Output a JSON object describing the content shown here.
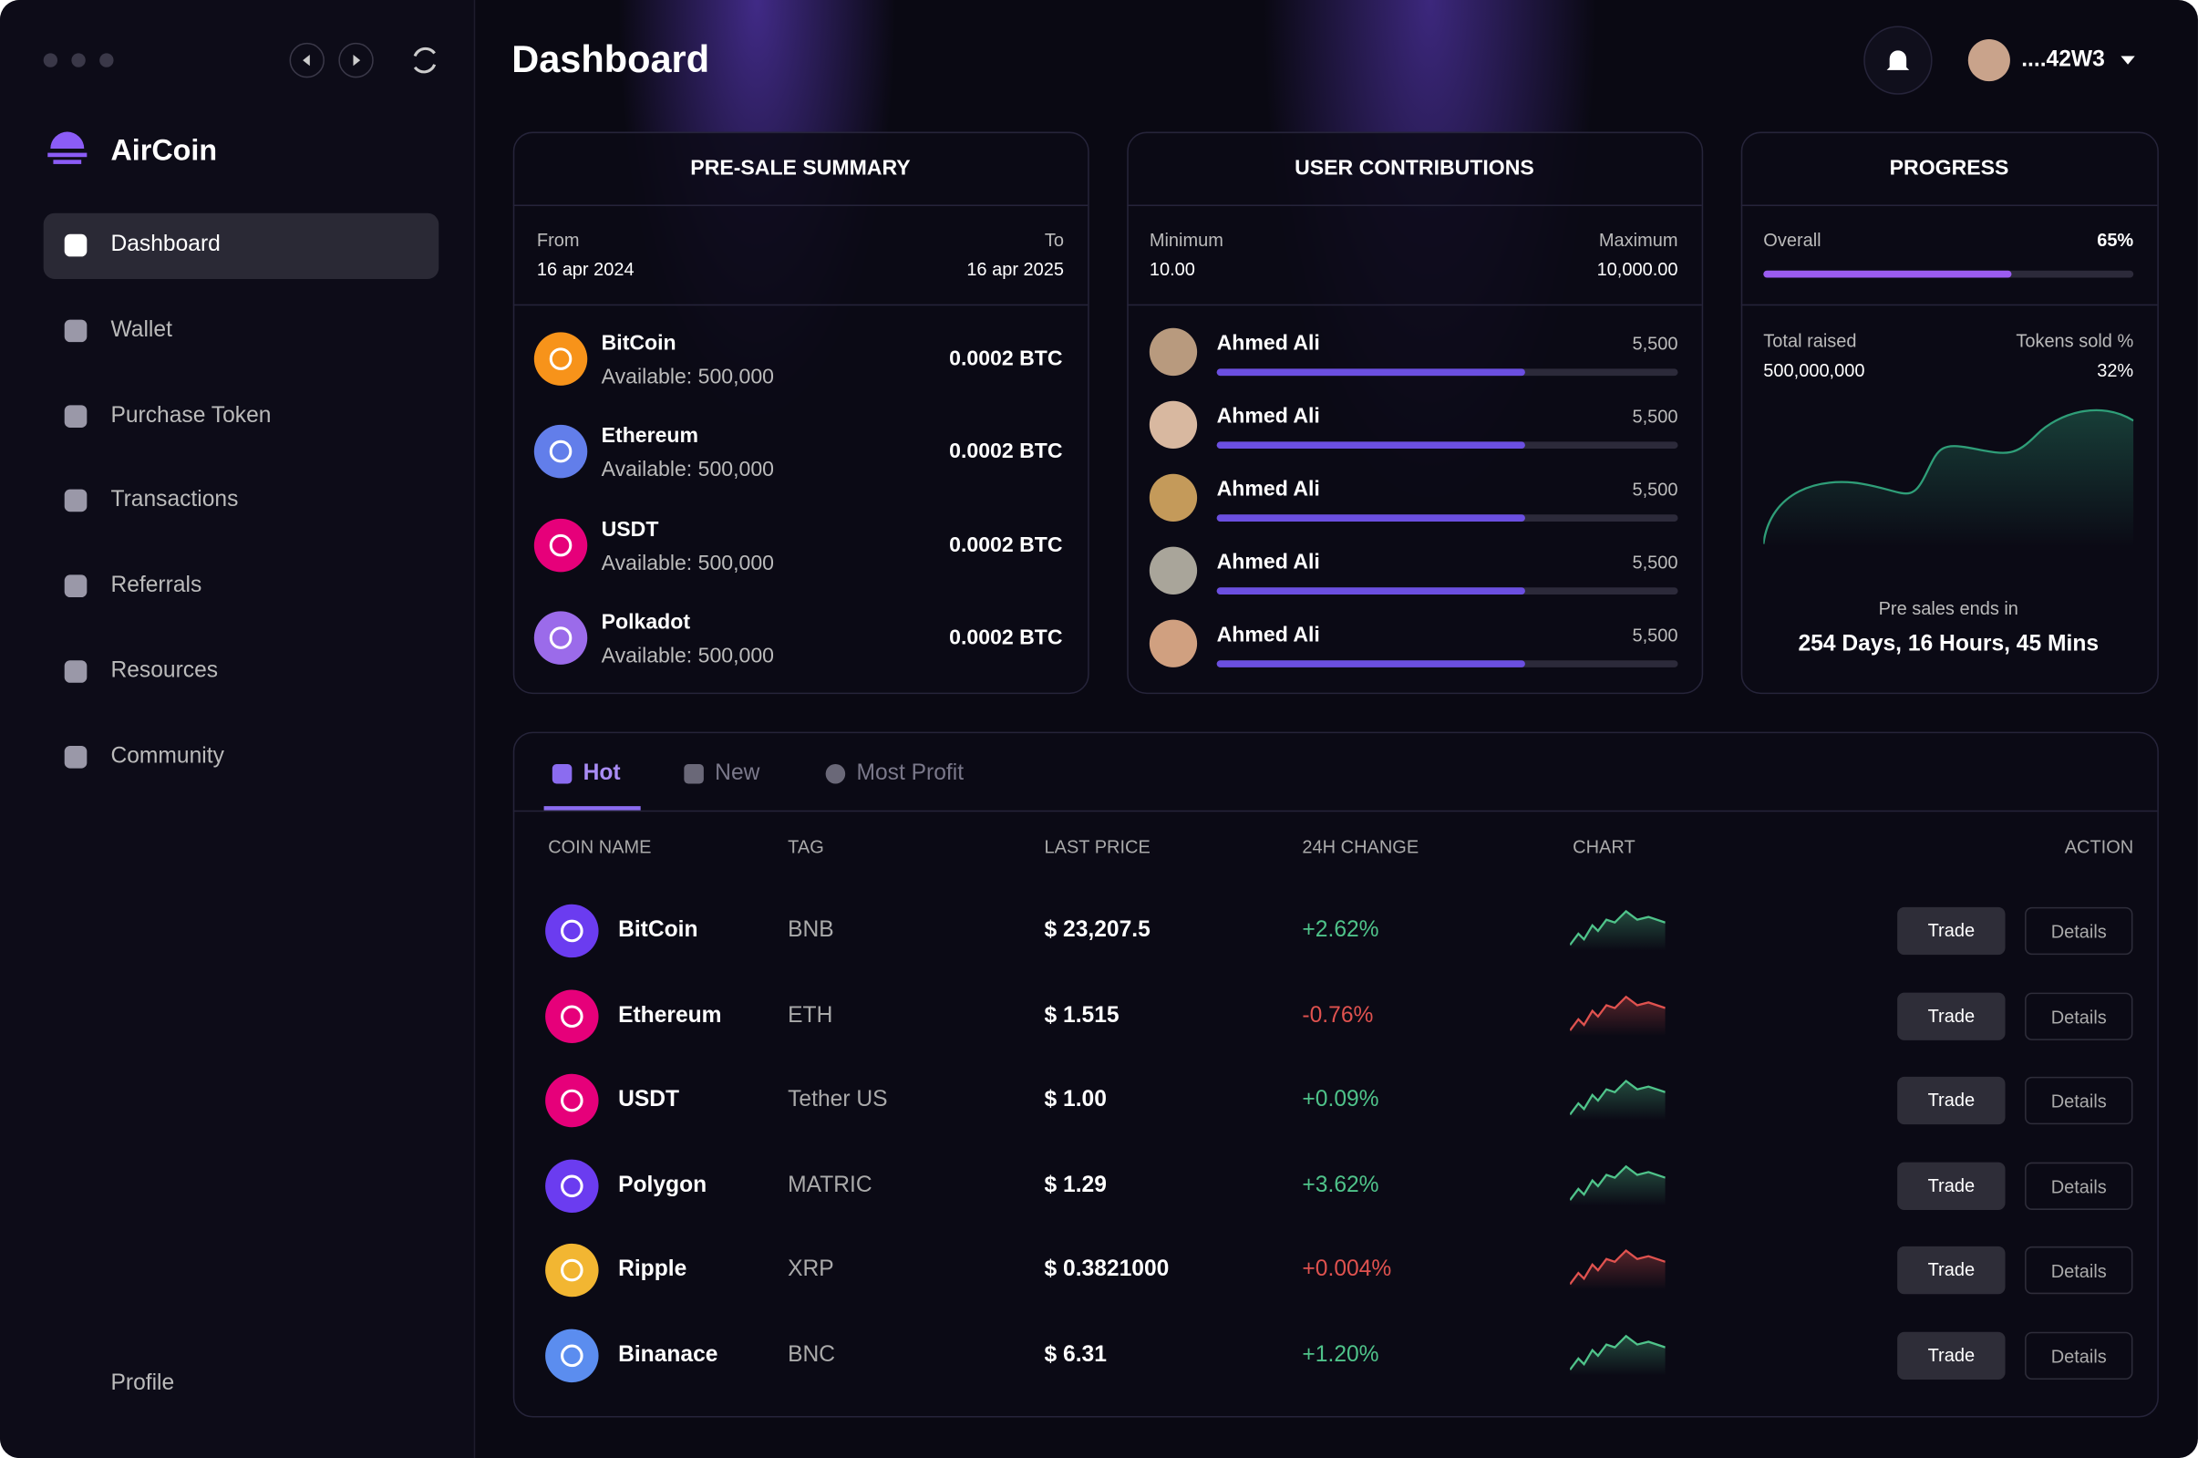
{
  "app": {
    "name": "AirCoin"
  },
  "header": {
    "title": "Dashboard",
    "account": "....42W3"
  },
  "nav": {
    "items": [
      "Dashboard",
      "Wallet",
      "Purchase Token",
      "Transactions",
      "Referrals",
      "Resources",
      "Community"
    ],
    "profile": "Profile"
  },
  "presale": {
    "title": "PRE-SALE SUMMARY",
    "from_label": "From",
    "from": "16 apr 2024",
    "to_label": "To",
    "to": "16 apr 2025",
    "coins": [
      {
        "name": "BitCoin",
        "available": "Available: 500,000",
        "price": "0.0002 BTC",
        "color": "#f7931a"
      },
      {
        "name": "Ethereum",
        "available": "Available: 500,000",
        "price": "0.0002 BTC",
        "color": "#627eea"
      },
      {
        "name": "USDT",
        "available": "Available: 500,000",
        "price": "0.0002 BTC",
        "color": "#e6007a"
      },
      {
        "name": "Polkadot",
        "available": "Available: 500,000",
        "price": "0.0002 BTC",
        "color": "#9b6bea"
      }
    ]
  },
  "contributions": {
    "title": "USER CONTRIBUTIONS",
    "min_label": "Minimum",
    "min": "10.00",
    "max_label": "Maximum",
    "max": "10,000.00",
    "users": [
      {
        "name": "Ahmed Ali",
        "amount": "5,500"
      },
      {
        "name": "Ahmed Ali",
        "amount": "5,500"
      },
      {
        "name": "Ahmed Ali",
        "amount": "5,500"
      },
      {
        "name": "Ahmed Ali",
        "amount": "5,500"
      },
      {
        "name": "Ahmed Ali",
        "amount": "5,500"
      }
    ]
  },
  "progress": {
    "title": "PROGRESS",
    "overall_label": "Overall",
    "overall": "65%",
    "raised_label": "Total raised",
    "raised": "500,000,000",
    "sold_label": "Tokens sold %",
    "sold": "32%",
    "ends_label": "Pre sales ends in",
    "ends": "254 Days, 16 Hours, 45 Mins"
  },
  "market": {
    "tabs": [
      "Hot",
      "New",
      "Most Profit"
    ],
    "columns": [
      "COIN NAME",
      "TAG",
      "LAST PRICE",
      "24H CHANGE",
      "CHART",
      "ACTION"
    ],
    "trade": "Trade",
    "details": "Details",
    "rows": [
      {
        "name": "BitCoin",
        "tag": "BNB",
        "price": "$ 23,207.5",
        "change": "+2.62%",
        "color": "#4fc38a",
        "icon": "#6b3cf0"
      },
      {
        "name": "Ethereum",
        "tag": "ETH",
        "price": "$ 1.515",
        "change": "-0.76%",
        "color": "#e0524f",
        "icon": "#e6007a"
      },
      {
        "name": "USDT",
        "tag": "Tether US",
        "price": "$ 1.00",
        "change": "+0.09%",
        "color": "#4fc38a",
        "icon": "#e6007a"
      },
      {
        "name": "Polygon",
        "tag": "MATRIC",
        "price": "$ 1.29",
        "change": "+3.62%",
        "color": "#4fc38a",
        "icon": "#6b3cf0"
      },
      {
        "name": "Ripple",
        "tag": "XRP",
        "price": "$ 0.3821000",
        "change": "+0.004%",
        "color": "#e0524f",
        "icon": "#f2b632"
      },
      {
        "name": "Binanace",
        "tag": "BNC",
        "price": "$ 6.31",
        "change": "+1.20%",
        "color": "#4fc38a",
        "icon": "#5b8def"
      }
    ]
  }
}
